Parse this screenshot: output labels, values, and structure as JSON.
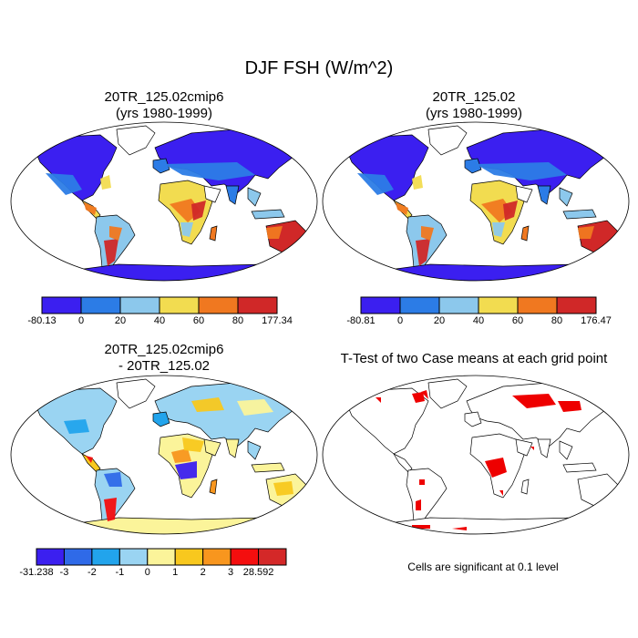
{
  "title": "DJF FSH (W/m^2)",
  "panels": {
    "top_left": {
      "line1": "20TR_125.02cmip6",
      "line2": "(yrs 1980-1999)"
    },
    "top_right": {
      "line1": "20TR_125.02",
      "line2": "(yrs 1980-1999)"
    },
    "bottom_left": {
      "line1": "20TR_125.02cmip6",
      "line2": "- 20TR_125.02"
    },
    "bottom_right": {
      "line1": "T-Test of two Case means at each grid point"
    }
  },
  "colorbars": {
    "top_left": {
      "colors": [
        "#3b1ff0",
        "#2c7ce6",
        "#8cc8ec",
        "#f2dc50",
        "#f07820",
        "#d02828"
      ],
      "labels": [
        "-80.13",
        "0",
        "20",
        "40",
        "60",
        "80",
        "177.34"
      ]
    },
    "top_right": {
      "colors": [
        "#3b1ff0",
        "#2c7ce6",
        "#8cc8ec",
        "#f2dc50",
        "#f07820",
        "#d02828"
      ],
      "labels": [
        "-80.81",
        "0",
        "20",
        "40",
        "60",
        "80",
        "176.47"
      ]
    },
    "bottom_left": {
      "colors": [
        "#3b1ff0",
        "#2f6ae8",
        "#22a4ec",
        "#9ad4f2",
        "#fbf49a",
        "#f8c81e",
        "#f8961e",
        "#f40e0e",
        "#d42828"
      ],
      "labels": [
        "-31.238",
        "-3",
        "-2",
        "-1",
        "0",
        "1",
        "2",
        "3",
        "28.592"
      ]
    }
  },
  "significance_note": "Cells are significant at 0.1 level",
  "map_colors": {
    "ocean": "#ffffff",
    "outline": "#000000",
    "significant": "#ee0000"
  }
}
